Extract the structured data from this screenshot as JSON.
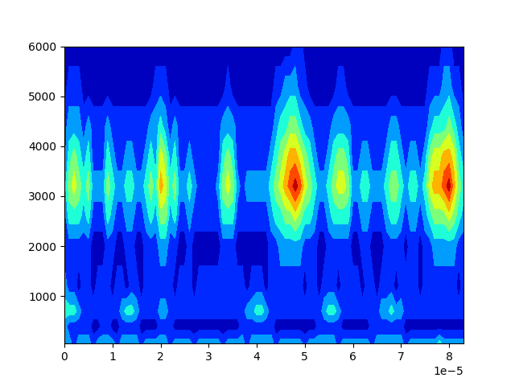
{
  "chart_data": {
    "type": "contour",
    "x": [
      0.0,
      1e-06,
      2e-06,
      3e-06,
      4e-06,
      5e-06,
      6e-06,
      7e-06,
      8e-06,
      9e-06,
      1e-05,
      1.1e-05,
      1.2e-05,
      1.3e-05,
      1.4e-05,
      1.5e-05,
      1.6e-05,
      1.7e-05,
      1.8e-05,
      1.9e-05,
      2e-05,
      2.1e-05,
      2.2e-05,
      2.3e-05,
      2.4e-05,
      2.5e-05,
      2.6e-05,
      2.7e-05,
      2.8e-05,
      2.9e-05,
      3e-05,
      3.1e-05,
      3.2e-05,
      3.3e-05,
      3.4e-05,
      3.5e-05,
      3.6e-05,
      3.7e-05,
      3.8e-05,
      3.9e-05,
      4e-05,
      4.1e-05,
      4.2e-05,
      4.3e-05,
      4.4e-05,
      4.5e-05,
      4.6e-05,
      4.7e-05,
      4.8e-05,
      4.9e-05,
      5e-05,
      5.1e-05,
      5.2e-05,
      5.3e-05,
      5.4e-05,
      5.5e-05,
      5.6e-05,
      5.7e-05,
      5.8e-05,
      5.9e-05,
      6e-05,
      6.1e-05,
      6.2e-05,
      6.3e-05,
      6.4e-05,
      6.5e-05,
      6.6e-05,
      6.7e-05,
      6.8e-05,
      6.9e-05,
      7e-05,
      7.1e-05,
      7.2e-05,
      7.3e-05,
      7.4e-05,
      7.5e-05,
      7.6e-05,
      7.7e-05,
      7.8e-05,
      7.9e-05,
      8e-05,
      8.1e-05,
      8.2e-05,
      8.3e-05
    ],
    "y": [
      50,
      400,
      700,
      1200,
      2000,
      2600,
      3200,
      3800,
      4400,
      5200,
      6000
    ],
    "z": [
      [
        3,
        3,
        2,
        3,
        3,
        3,
        2,
        3,
        3,
        3,
        3,
        2,
        3,
        3,
        3,
        3,
        2,
        3,
        3,
        3,
        3,
        3,
        2,
        3,
        3,
        3,
        3,
        2,
        3,
        3,
        3,
        3,
        3,
        2,
        3,
        3,
        3,
        3,
        2,
        3,
        3,
        3,
        3,
        3,
        2,
        3,
        3,
        3,
        3,
        3,
        2,
        3,
        3,
        3,
        3,
        3,
        3,
        2,
        3,
        3,
        3,
        3,
        3,
        3,
        2,
        3,
        3,
        3,
        3,
        3,
        3,
        2,
        3,
        3,
        3,
        3,
        3,
        3,
        4,
        3,
        3,
        3,
        3,
        3
      ],
      [
        3,
        2,
        2,
        2,
        2,
        2,
        1,
        1,
        2,
        2,
        1,
        1,
        2,
        2,
        2,
        2,
        1,
        1,
        1,
        1,
        2,
        2,
        2,
        1,
        1,
        1,
        1,
        1,
        1,
        1,
        1,
        1,
        1,
        1,
        1,
        1,
        1,
        2,
        2,
        2,
        2,
        2,
        2,
        2,
        1,
        1,
        1,
        1,
        1,
        1,
        1,
        1,
        1,
        2,
        2,
        2,
        2,
        2,
        1,
        1,
        1,
        1,
        1,
        1,
        2,
        2,
        2,
        2,
        2,
        2,
        2,
        1,
        1,
        1,
        1,
        1,
        1,
        1,
        1,
        1,
        1,
        1,
        1,
        1
      ],
      [
        4,
        4,
        4,
        3,
        2,
        2,
        2,
        2,
        2,
        2,
        2,
        2,
        3,
        4,
        4,
        3,
        2,
        2,
        2,
        2,
        3,
        3,
        2,
        2,
        2,
        2,
        2,
        2,
        2,
        2,
        2,
        2,
        2,
        2,
        2,
        2,
        2,
        2,
        3,
        3,
        4,
        4,
        3,
        2,
        2,
        2,
        2,
        2,
        2,
        2,
        2,
        2,
        2,
        2,
        3,
        4,
        4,
        3,
        2,
        2,
        2,
        2,
        2,
        2,
        2,
        2,
        3,
        3,
        4,
        3,
        3,
        2,
        2,
        2,
        2,
        2,
        2,
        2,
        2,
        2,
        2,
        2,
        2,
        2
      ],
      [
        3,
        2,
        2,
        1,
        2,
        2,
        1,
        2,
        2,
        2,
        1,
        2,
        2,
        1,
        2,
        2,
        1,
        2,
        2,
        2,
        2,
        2,
        2,
        1,
        2,
        2,
        2,
        1,
        2,
        2,
        2,
        2,
        2,
        2,
        2,
        2,
        2,
        2,
        1,
        2,
        2,
        2,
        1,
        2,
        2,
        2,
        2,
        2,
        2,
        2,
        1,
        2,
        2,
        1,
        2,
        2,
        2,
        1,
        2,
        2,
        2,
        2,
        1,
        2,
        2,
        1,
        2,
        2,
        2,
        1,
        2,
        2,
        2,
        2,
        1,
        2,
        2,
        2,
        2,
        2,
        2,
        2,
        1,
        2
      ],
      [
        2,
        2,
        2,
        2,
        2,
        2,
        1,
        1,
        1,
        2,
        2,
        1,
        1,
        2,
        2,
        1,
        1,
        2,
        2,
        2,
        3,
        3,
        2,
        2,
        1,
        1,
        2,
        1,
        1,
        1,
        1,
        1,
        1,
        2,
        2,
        2,
        1,
        1,
        1,
        1,
        1,
        1,
        1,
        2,
        2,
        3,
        3,
        3,
        3,
        3,
        2,
        2,
        2,
        1,
        1,
        2,
        2,
        2,
        2,
        2,
        1,
        1,
        2,
        2,
        1,
        1,
        1,
        2,
        2,
        2,
        2,
        1,
        2,
        2,
        1,
        2,
        2,
        3,
        3,
        3,
        3,
        3,
        2,
        2
      ],
      [
        2,
        4,
        4,
        4,
        3,
        4,
        2,
        2,
        2,
        4,
        3,
        2,
        2,
        3,
        3,
        2,
        2,
        3,
        4,
        3,
        5,
        5,
        3,
        4,
        2,
        2,
        3,
        2,
        2,
        2,
        2,
        2,
        2,
        4,
        4,
        4,
        2,
        2,
        2,
        2,
        2,
        2,
        2,
        3,
        4,
        4,
        5,
        5,
        6,
        5,
        4,
        4,
        3,
        2,
        2,
        3,
        4,
        4,
        4,
        4,
        2,
        2,
        3,
        3,
        2,
        2,
        2,
        3,
        4,
        4,
        3,
        2,
        3,
        3,
        2,
        3,
        4,
        5,
        5,
        5,
        6,
        5,
        4,
        3
      ],
      [
        3,
        5,
        6,
        5,
        4,
        5,
        3,
        3,
        3,
        5,
        4,
        3,
        3,
        4,
        4,
        3,
        3,
        4,
        5,
        4,
        7,
        6,
        4,
        5,
        3,
        3,
        4,
        3,
        2,
        2,
        2,
        2,
        3,
        5,
        6,
        5,
        3,
        2,
        3,
        3,
        3,
        3,
        3,
        4,
        5,
        6,
        7,
        8,
        9,
        8,
        6,
        5,
        4,
        3,
        3,
        4,
        5,
        6,
        6,
        5,
        3,
        3,
        4,
        4,
        3,
        3,
        3,
        4,
        5,
        5,
        4,
        3,
        4,
        4,
        3,
        4,
        6,
        7,
        7,
        8,
        9,
        7,
        5,
        4
      ],
      [
        2,
        4,
        5,
        4,
        3,
        4,
        2,
        2,
        2,
        4,
        3,
        2,
        2,
        3,
        3,
        2,
        2,
        3,
        4,
        3,
        6,
        5,
        3,
        4,
        2,
        2,
        3,
        2,
        2,
        2,
        2,
        2,
        2,
        4,
        5,
        4,
        2,
        2,
        2,
        2,
        2,
        2,
        2,
        3,
        4,
        5,
        6,
        7,
        7,
        6,
        5,
        4,
        3,
        2,
        2,
        3,
        4,
        5,
        5,
        4,
        2,
        2,
        3,
        3,
        2,
        2,
        2,
        3,
        4,
        4,
        3,
        2,
        3,
        3,
        2,
        3,
        5,
        6,
        6,
        7,
        7,
        6,
        4,
        3
      ],
      [
        2,
        3,
        3,
        3,
        2,
        3,
        2,
        2,
        2,
        3,
        2,
        2,
        2,
        2,
        2,
        2,
        2,
        2,
        3,
        3,
        4,
        3,
        2,
        3,
        2,
        2,
        2,
        2,
        2,
        2,
        2,
        2,
        2,
        3,
        3,
        3,
        2,
        2,
        2,
        2,
        2,
        2,
        2,
        2,
        3,
        4,
        4,
        5,
        5,
        4,
        3,
        3,
        2,
        2,
        2,
        2,
        3,
        3,
        3,
        3,
        2,
        2,
        2,
        2,
        2,
        2,
        2,
        2,
        3,
        3,
        2,
        2,
        2,
        2,
        2,
        2,
        3,
        4,
        4,
        4,
        5,
        4,
        3,
        2
      ],
      [
        1,
        2,
        2,
        2,
        1,
        1,
        1,
        1,
        1,
        1,
        1,
        1,
        1,
        1,
        1,
        1,
        1,
        1,
        1,
        2,
        2,
        2,
        1,
        1,
        1,
        1,
        1,
        1,
        1,
        1,
        1,
        1,
        1,
        1,
        2,
        1,
        1,
        1,
        1,
        1,
        1,
        1,
        1,
        1,
        2,
        2,
        3,
        3,
        3,
        2,
        2,
        1,
        1,
        1,
        1,
        1,
        1,
        2,
        2,
        1,
        1,
        1,
        1,
        1,
        1,
        1,
        1,
        1,
        1,
        1,
        1,
        1,
        1,
        1,
        1,
        1,
        2,
        2,
        2,
        3,
        3,
        2,
        2,
        1
      ],
      [
        1,
        1,
        1,
        1,
        1,
        1,
        1,
        1,
        1,
        1,
        1,
        1,
        1,
        1,
        1,
        1,
        1,
        1,
        1,
        1,
        1,
        1,
        1,
        1,
        1,
        1,
        1,
        1,
        1,
        1,
        1,
        1,
        1,
        1,
        1,
        1,
        1,
        1,
        1,
        1,
        1,
        1,
        1,
        1,
        1,
        1,
        1,
        1,
        2,
        2,
        1,
        1,
        1,
        1,
        1,
        1,
        1,
        1,
        1,
        1,
        1,
        1,
        1,
        1,
        1,
        1,
        1,
        1,
        1,
        1,
        1,
        1,
        1,
        1,
        1,
        1,
        1,
        1,
        1,
        2,
        2,
        1,
        1,
        1
      ]
    ],
    "levels": [
      0.5,
      1.5,
      2.5,
      3.5,
      4.5,
      5.5,
      6.5,
      7.5,
      8.5,
      9.5
    ],
    "xlim": [
      0.0,
      8.3e-05
    ],
    "xticks": [
      {
        "value": 0.0,
        "label": "0"
      },
      {
        "value": 1e-05,
        "label": "1"
      },
      {
        "value": 2e-05,
        "label": "2"
      },
      {
        "value": 3e-05,
        "label": "3"
      },
      {
        "value": 4e-05,
        "label": "4"
      },
      {
        "value": 5e-05,
        "label": "5"
      },
      {
        "value": 6e-05,
        "label": "6"
      },
      {
        "value": 7e-05,
        "label": "7"
      },
      {
        "value": 8e-05,
        "label": "8"
      }
    ],
    "x_multiplier": "1e−5",
    "ylim": [
      50,
      6000
    ],
    "yticks": [
      1000,
      2000,
      3000,
      4000,
      5000,
      6000
    ]
  }
}
